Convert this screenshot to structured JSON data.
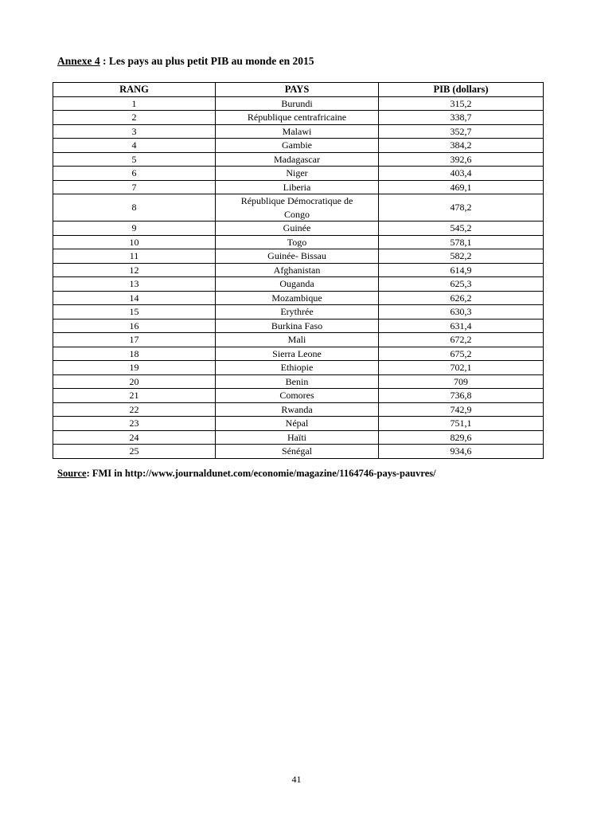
{
  "document": {
    "title_annexe": "Annexe 4",
    "title_rest": " : Les pays au plus petit PIB au monde en 2015",
    "page_number": "41"
  },
  "source": {
    "label": "Source",
    "rest": ": FMI in http://www.journaldunet.com/economie/magazine/1164746-pays-pauvres/"
  },
  "table": {
    "headers": {
      "rang": "RANG",
      "pays": "PAYS",
      "pib": "PIB (dollars)"
    },
    "rows": [
      {
        "rang": "1",
        "pays": "Burundi",
        "pib": "315,2"
      },
      {
        "rang": "2",
        "pays": "République centrafricaine",
        "pib": "338,7"
      },
      {
        "rang": "3",
        "pays": "Malawi",
        "pib": "352,7"
      },
      {
        "rang": "4",
        "pays": "Gambie",
        "pib": "384,2"
      },
      {
        "rang": "5",
        "pays": "Madagascar",
        "pib": "392,6"
      },
      {
        "rang": "6",
        "pays": "Niger",
        "pib": "403,4"
      },
      {
        "rang": "7",
        "pays": "Liberia",
        "pib": "469,1"
      },
      {
        "rang": "8",
        "pays": "République Démocratique de\nCongo",
        "pib": "478,2"
      },
      {
        "rang": "9",
        "pays": "Guinée",
        "pib": "545,2"
      },
      {
        "rang": "10",
        "pays": "Togo",
        "pib": "578,1"
      },
      {
        "rang": "11",
        "pays": "Guinée- Bissau",
        "pib": "582,2"
      },
      {
        "rang": "12",
        "pays": "Afghanistan",
        "pib": "614,9"
      },
      {
        "rang": "13",
        "pays": "Ouganda",
        "pib": "625,3"
      },
      {
        "rang": "14",
        "pays": "Mozambique",
        "pib": "626,2"
      },
      {
        "rang": "15",
        "pays": "Erythrée",
        "pib": "630,3"
      },
      {
        "rang": "16",
        "pays": "Burkina Faso",
        "pib": "631,4"
      },
      {
        "rang": "17",
        "pays": "Mali",
        "pib": "672,2"
      },
      {
        "rang": "18",
        "pays": "Sierra Leone",
        "pib": "675,2"
      },
      {
        "rang": "19",
        "pays": "Ethiopie",
        "pib": "702,1"
      },
      {
        "rang": "20",
        "pays": "Benin",
        "pib": "709"
      },
      {
        "rang": "21",
        "pays": "Comores",
        "pib": "736,8"
      },
      {
        "rang": "22",
        "pays": "Rwanda",
        "pib": "742,9"
      },
      {
        "rang": "23",
        "pays": "Népal",
        "pib": "751,1"
      },
      {
        "rang": "24",
        "pays": "Haïti",
        "pib": "829,6"
      },
      {
        "rang": "25",
        "pays": "Sénégal",
        "pib": "934,6"
      }
    ]
  }
}
